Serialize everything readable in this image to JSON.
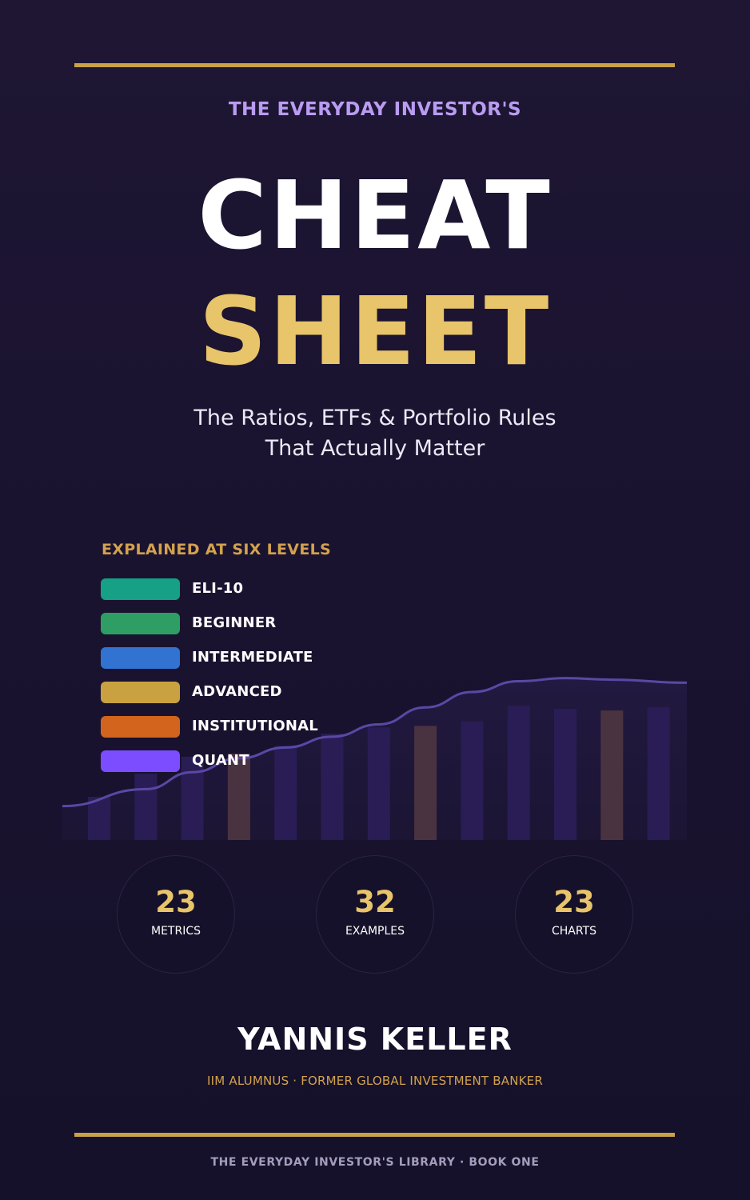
{
  "cover": {
    "series": "THE EVERYDAY INVESTOR'S",
    "title_line1": "CHEAT",
    "title_line2": "SHEET",
    "subtitle_line1": "The Ratios, ETFs & Portfolio Rules",
    "subtitle_line2": "That Actually Matter"
  },
  "levels": {
    "heading": "EXPLAINED AT SIX LEVELS",
    "items": [
      {
        "label": "ELI-10",
        "color": "#16a085"
      },
      {
        "label": "BEGINNER",
        "color": "#2e9e64"
      },
      {
        "label": "INTERMEDIATE",
        "color": "#3273d1"
      },
      {
        "label": "ADVANCED",
        "color": "#c9a140"
      },
      {
        "label": "INSTITUTIONAL",
        "color": "#d3641e"
      },
      {
        "label": "QUANT",
        "color": "#7c4dff"
      }
    ]
  },
  "chart_data": {
    "type": "bar",
    "values": [
      28,
      43,
      54,
      56,
      61,
      69,
      73,
      74,
      77,
      87,
      85,
      84,
      86
    ],
    "highlighted": [
      3,
      7,
      11
    ],
    "trend": [
      22,
      33,
      44,
      53,
      60,
      67,
      75,
      86,
      96,
      103,
      105,
      104,
      102
    ],
    "ylim": [
      0,
      110
    ],
    "bar_color": "#2a1d55",
    "highlight_color": "#4a3340",
    "line_color": "#5a48a6"
  },
  "stats": [
    {
      "value": "23",
      "label": "METRICS"
    },
    {
      "value": "32",
      "label": "EXAMPLES"
    },
    {
      "value": "23",
      "label": "CHARTS"
    }
  ],
  "author": {
    "name": "YANNIS KELLER",
    "credentials": "IIM ALUMNUS  ·  FORMER GLOBAL INVESTMENT BANKER"
  },
  "footer": {
    "library": "THE EVERYDAY INVESTOR'S LIBRARY  ·  BOOK ONE"
  }
}
